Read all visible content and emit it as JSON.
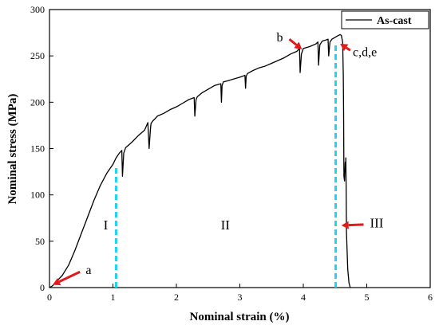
{
  "chart_data": {
    "type": "line",
    "xlabel": "Nominal strain (%)",
    "ylabel": "Nominal stress (MPa)",
    "xlim": [
      0,
      6
    ],
    "ylim": [
      0,
      300
    ],
    "xticks": [
      0,
      1,
      2,
      3,
      4,
      5,
      6
    ],
    "yticks": [
      0,
      50,
      100,
      150,
      200,
      250,
      300
    ],
    "legend": {
      "placement": "top-right",
      "entries": [
        "As-cast"
      ]
    },
    "grid": false,
    "series": [
      {
        "name": "As-cast",
        "color": "#000000",
        "x": [
          0.0,
          0.05,
          0.1,
          0.2,
          0.3,
          0.4,
          0.5,
          0.6,
          0.7,
          0.8,
          0.9,
          1.0,
          1.05,
          1.1,
          1.14,
          1.15,
          1.17,
          1.2,
          1.3,
          1.4,
          1.5,
          1.55,
          1.57,
          1.59,
          1.6,
          1.61,
          1.62,
          1.63,
          1.66,
          1.7,
          1.8,
          1.9,
          2.0,
          2.1,
          2.2,
          2.28,
          2.29,
          2.31,
          2.33,
          2.4,
          2.5,
          2.6,
          2.7,
          2.71,
          2.72,
          2.74,
          2.8,
          2.9,
          3.0,
          3.08,
          3.09,
          3.1,
          3.12,
          3.2,
          3.3,
          3.4,
          3.5,
          3.6,
          3.7,
          3.8,
          3.9,
          3.94,
          3.95,
          3.97,
          4.0,
          4.1,
          4.2,
          4.23,
          4.24,
          4.26,
          4.3,
          4.35,
          4.39,
          4.4,
          4.42,
          4.45,
          4.5,
          4.55,
          4.58,
          4.6,
          4.62,
          4.63,
          4.635,
          4.64,
          4.65,
          4.66,
          4.665,
          4.67,
          4.675,
          4.68,
          4.69,
          4.7,
          4.72,
          4.74
        ],
        "y": [
          0,
          2,
          6,
          13,
          24,
          40,
          58,
          76,
          94,
          110,
          123,
          133,
          140,
          145,
          148,
          120,
          145,
          151,
          157,
          164,
          170,
          178,
          150,
          170,
          177,
          178,
          179,
          180,
          182,
          185,
          188,
          192,
          195,
          199,
          203,
          205,
          185,
          203,
          206,
          210,
          214,
          218,
          220,
          200,
          218,
          222,
          223,
          225,
          227,
          229,
          215,
          228,
          231,
          234,
          237,
          239,
          242,
          245,
          248,
          252,
          255,
          258,
          232,
          252,
          258,
          260,
          263,
          265,
          240,
          262,
          266,
          267,
          268,
          250,
          265,
          268,
          270,
          272,
          273,
          272,
          265,
          230,
          190,
          120,
          115,
          135,
          125,
          140,
          110,
          60,
          40,
          20,
          5,
          0
        ]
      }
    ],
    "region_boundaries": [
      1.05,
      4.51
    ],
    "region_boundary_color": "#22d3ee",
    "arrow_color": "#e31a1c",
    "region_labels": [
      {
        "text": "I",
        "x": 0.85,
        "y": 68
      },
      {
        "text": "II",
        "x": 2.7,
        "y": 68
      },
      {
        "text": "III",
        "x": 5.05,
        "y": 70
      }
    ],
    "annotations": [
      {
        "text": "a",
        "label_x": 0.57,
        "label_y": 19,
        "tip_x": 0.05,
        "tip_y": 3,
        "from_x": 0.48,
        "from_y": 17,
        "anchor": "start"
      },
      {
        "text": "b",
        "label_x": 3.68,
        "label_y": 270,
        "tip_x": 3.98,
        "tip_y": 257,
        "from_x": 3.78,
        "from_y": 268,
        "anchor": "end"
      },
      {
        "text": "c,d,e",
        "label_x": 4.78,
        "label_y": 254,
        "tip_x": 4.58,
        "tip_y": 263,
        "from_x": 4.74,
        "from_y": 256,
        "anchor": "start"
      },
      {
        "text": "III",
        "label_x": 5.05,
        "label_y": 70,
        "tip_x": 4.6,
        "tip_y": 67,
        "from_x": 4.95,
        "from_y": 68,
        "anchor": "start",
        "arrow_only": true
      }
    ]
  }
}
